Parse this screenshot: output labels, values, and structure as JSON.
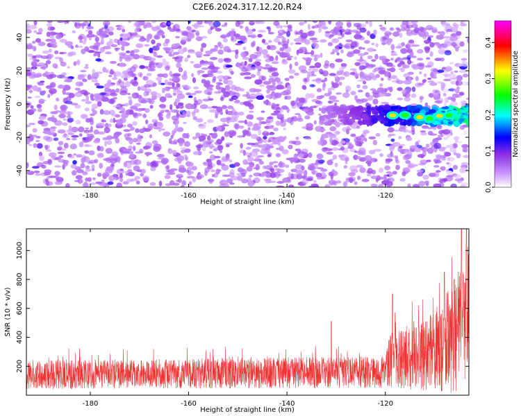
{
  "title": "C2E6.2024.317.12.20.R24",
  "chart_data": [
    {
      "type": "heatmap",
      "title": "C2E6.2024.317.12.20.R24",
      "xlabel": "Height of straight line (km)",
      "ylabel": "Frequency (Hz)",
      "xlim": [
        -193,
        -103
      ],
      "ylim": [
        -50,
        50
      ],
      "xticks": [
        -180,
        -160,
        -140,
        -120
      ],
      "yticks": [
        -40,
        -20,
        0,
        20,
        40
      ],
      "colorbar": {
        "label": "Normalized spectral amplitude",
        "range": [
          0,
          0.46
        ],
        "ticks": [
          "0.0",
          "0.1",
          "0.2",
          "0.3",
          "0.4"
        ],
        "colormap": [
          "#ffffff",
          "#8a2be2",
          "#0000ff",
          "#00ffff",
          "#00ff00",
          "#ffff00",
          "#ff0000",
          "#ff00ff"
        ]
      },
      "background_level": 0.02,
      "noise_spot_level": [
        0.03,
        0.08
      ],
      "signal_band": {
        "x_start": -133,
        "x_end": -103,
        "freq_center": -7,
        "freq_halfwidth": 5,
        "peak_amplitude": 0.33,
        "peak_x": [
          -118.5,
          -116,
          -113,
          -111,
          -109,
          -107
        ]
      }
    },
    {
      "type": "line",
      "xlabel": "Height of straight line (km)",
      "ylabel": "SNR (10 * v/v)",
      "xlim": [
        -193,
        -103
      ],
      "ylim": [
        0,
        1150
      ],
      "xticks": [
        -180,
        -160,
        -140,
        -120
      ],
      "yticks": [
        200,
        400,
        600,
        800,
        1000
      ],
      "color": "#ee3333",
      "series": [
        {
          "name": "SNR",
          "baseline": [
            [
              -193,
              140
            ],
            [
              -120,
              160
            ],
            [
              -119,
              250
            ],
            [
              -112,
              270
            ],
            [
              -106,
              400
            ],
            [
              -103,
              550
            ]
          ],
          "spread": [
            [
              -193,
              180
            ],
            [
              -120,
              200
            ],
            [
              -119,
              350
            ],
            [
              -112,
              450
            ],
            [
              -106,
              700
            ],
            [
              -103,
              900
            ]
          ],
          "spikes": [
            [
              -131,
              510
            ],
            [
              -118.5,
              700
            ],
            [
              -118,
              570
            ],
            [
              -108,
              850
            ],
            [
              -106,
              800
            ],
            [
              -104.5,
              1150
            ],
            [
              -103.5,
              1150
            ]
          ]
        }
      ]
    }
  ]
}
